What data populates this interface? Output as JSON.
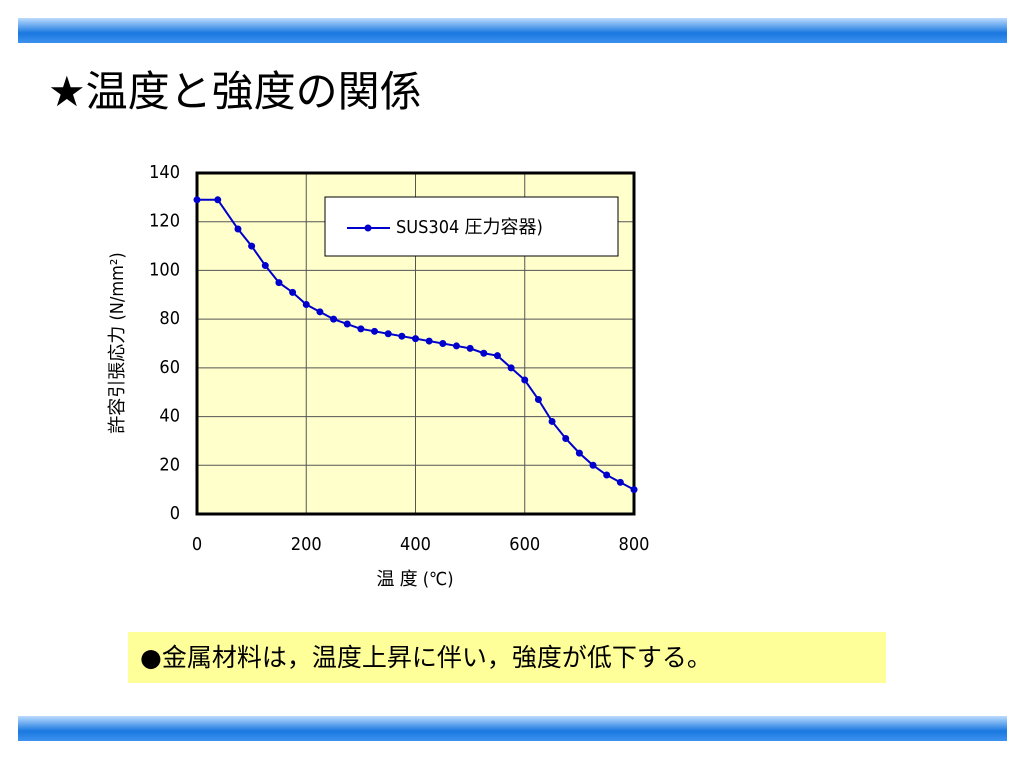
{
  "slide": {
    "title": "★温度と強度の関係",
    "note": "●金属材料は，温度上昇に伴い，強度が低下する。"
  },
  "chart_data": {
    "type": "line",
    "x_label": "温 度 (℃)",
    "y_label": "許容引張応力 (N/mm²)",
    "x": [
      0,
      38,
      75,
      100,
      125,
      150,
      175,
      200,
      225,
      250,
      275,
      300,
      325,
      350,
      375,
      400,
      425,
      450,
      475,
      500,
      525,
      550,
      575,
      600,
      625,
      650,
      675,
      700,
      725,
      750,
      775,
      800
    ],
    "series": [
      {
        "name": "SUS304 圧力容器)",
        "color": "#0000cc",
        "values": [
          129,
          129,
          117,
          110,
          102,
          95,
          91,
          86,
          83,
          80,
          78,
          76,
          75,
          74,
          73,
          72,
          71,
          70,
          69,
          68,
          66,
          65,
          60,
          55,
          47,
          38,
          31,
          25,
          20,
          16,
          13,
          10
        ]
      }
    ],
    "xlim": [
      0,
      800
    ],
    "xticks": [
      0,
      200,
      400,
      600,
      800
    ],
    "ylim": [
      0,
      140
    ],
    "yticks": [
      0,
      20,
      40,
      60,
      80,
      100,
      120,
      140
    ],
    "grid": true,
    "legend": "upper right",
    "plot_background": "#ffffcc"
  }
}
